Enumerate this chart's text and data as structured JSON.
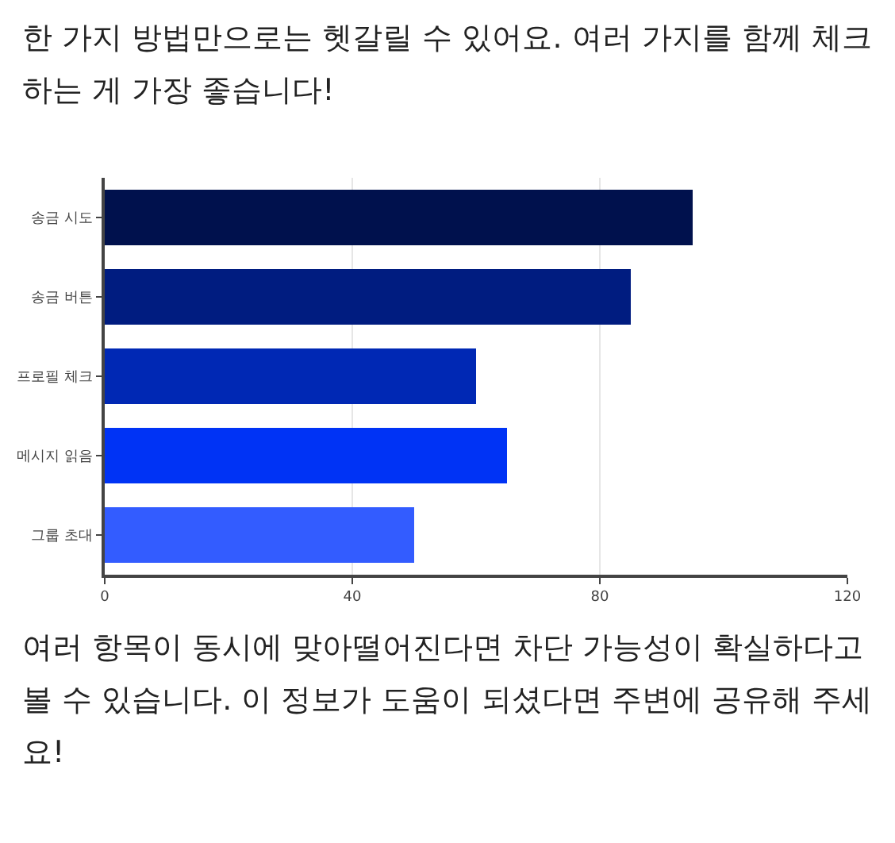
{
  "chart_data": {
    "type": "bar",
    "orientation": "horizontal",
    "title": "한 가지 방법만으로는 헷갈릴 수 있어요. 여러 가지를 함께 체크하는 게 가장 좋습니다!",
    "categories": [
      "송금 시도",
      "송금 버튼",
      "프로필 체크",
      "메시지 읽음",
      "그룹 초대"
    ],
    "values": [
      95,
      85,
      60,
      65,
      50
    ],
    "colors": [
      "#00114d",
      "#001c80",
      "#0028b4",
      "#0033f5",
      "#335cff"
    ],
    "xlim": [
      0,
      120
    ],
    "xticks": [
      0,
      40,
      80,
      120
    ],
    "grid": "x",
    "annotations": [
      "여러 항목이 동시에 맞아떨어진다면 차단 가능성이 확실하다고 볼 수 있습니다. 이 정보가 도움이 되셨다면 주변에 공유해 주세요!"
    ]
  }
}
